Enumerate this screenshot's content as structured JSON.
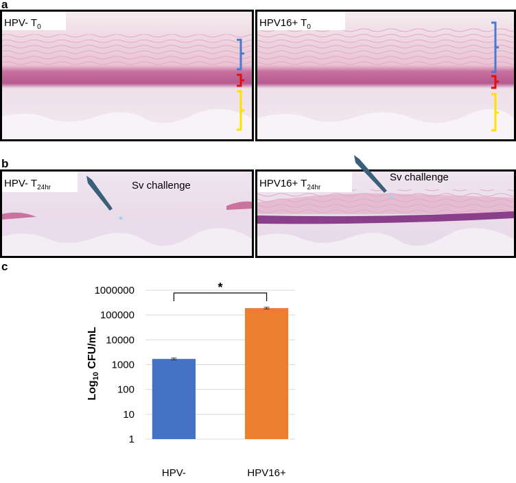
{
  "panel_a": {
    "label": "a",
    "images": [
      {
        "label": "HPV- T",
        "sub": "0"
      },
      {
        "label": "HPV16+ T",
        "sub": "0"
      }
    ]
  },
  "panel_b": {
    "label": "b",
    "images": [
      {
        "label": "HPV- T",
        "sub": "24hr",
        "note": "Sv challenge"
      },
      {
        "label": "HPV16+ T",
        "sub": "24hr",
        "note": "Sv challenge"
      }
    ]
  },
  "panel_c": {
    "label": "c"
  },
  "chart_data": {
    "type": "bar",
    "ylabel": {
      "text": "Log",
      "sub": "10",
      "rest": " CFU/mL"
    },
    "categories": [
      "HPV-",
      "HPV16+"
    ],
    "values": [
      1700,
      190000
    ],
    "errors": [
      150,
      15000
    ],
    "colors": [
      "#4472c4",
      "#ed7d31"
    ],
    "log_scale": true,
    "grid": true,
    "ylim": [
      1,
      1000000
    ],
    "yticks": [
      1,
      10,
      100,
      1000,
      10000,
      100000,
      1000000
    ],
    "annotation": "*"
  }
}
